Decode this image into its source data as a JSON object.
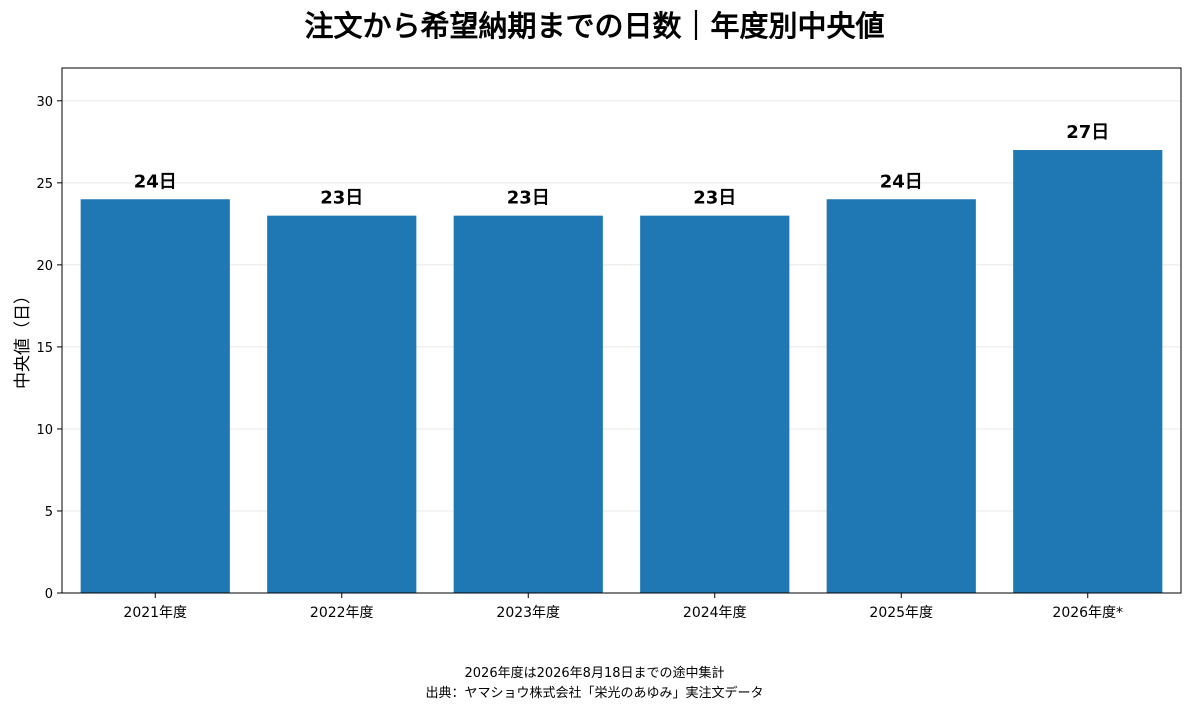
{
  "chart_data": {
    "type": "bar",
    "title": "注文から希望納期までの日数｜年度別中央値",
    "xlabel": "",
    "ylabel": "中央値（日）",
    "categories": [
      "2021年度",
      "2022年度",
      "2023年度",
      "2024年度",
      "2025年度",
      "2026年度*"
    ],
    "values": [
      24,
      23,
      23,
      23,
      24,
      27
    ],
    "data_labels": [
      "24日",
      "23日",
      "23日",
      "23日",
      "24日",
      "27日"
    ],
    "ylim": [
      0,
      32
    ],
    "yticks": [
      0,
      5,
      10,
      15,
      20,
      25,
      30
    ],
    "grid": true,
    "bar_color": "#1f77b4"
  },
  "footnotes": {
    "note": "2026年度は2026年8月18日までの途中集計",
    "source": "出典：ヤマショウ株式会社「栄光のあゆみ」実注文データ"
  }
}
